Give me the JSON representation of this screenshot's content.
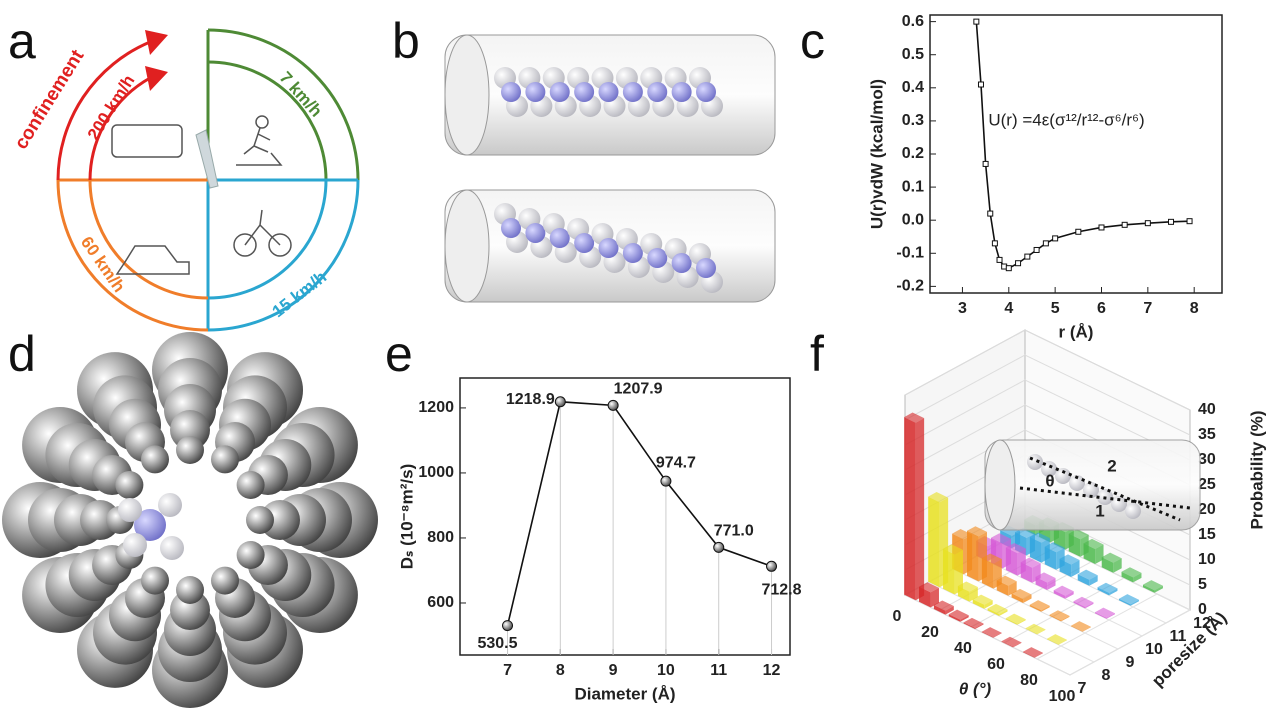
{
  "panel_labels": [
    "a",
    "b",
    "c",
    "d",
    "e",
    "f"
  ],
  "speed_dial": {
    "confinement": "confinement",
    "speeds": [
      "200 km/h",
      "7 km/h",
      "60 km/h",
      "15 km/h"
    ]
  },
  "chart_data": [
    {
      "type": "line",
      "annotation": "U(r) =4ε(σ¹²/r¹²-σ⁶/r⁶)",
      "xlabel": "r (Å)",
      "ylabel": "U(r)vdW (kcal/mol)",
      "color": "#111111",
      "x": [
        3.3,
        3.4,
        3.5,
        3.6,
        3.7,
        3.8,
        3.9,
        4.0,
        4.2,
        4.4,
        4.6,
        4.8,
        5.0,
        5.5,
        6.0,
        6.5,
        7.0,
        7.5,
        7.9
      ],
      "values": [
        0.6,
        0.41,
        0.17,
        0.02,
        -0.07,
        -0.12,
        -0.14,
        -0.145,
        -0.13,
        -0.11,
        -0.09,
        -0.07,
        -0.055,
        -0.035,
        -0.022,
        -0.014,
        -0.009,
        -0.005,
        -0.003
      ],
      "xlim": [
        2.3,
        8.6
      ],
      "xticks": [
        3,
        4,
        5,
        6,
        7,
        8
      ],
      "ylim": [
        -0.22,
        0.62
      ],
      "yticks": [
        -0.2,
        -0.1,
        {
          "value": 0,
          "label": "0.0"
        },
        0.1,
        0.2,
        0.3,
        0.4,
        0.5,
        0.6
      ]
    },
    {
      "type": "line",
      "xlabel": "Diameter (Å)",
      "ylabel": "Dₛ (10⁻⁸m²/s)",
      "color": "#111111",
      "x": [
        7,
        8,
        9,
        10,
        11,
        12
      ],
      "values": [
        530.5,
        1218.9,
        1207.9,
        974.7,
        771.0,
        712.8
      ],
      "value_labels": [
        "530.5",
        "1218.9",
        "1207.9",
        "974.7",
        "771.0",
        "712.8"
      ],
      "xlim": [
        6.1,
        12.35
      ],
      "xticks": [
        7,
        8,
        9,
        10,
        11,
        12
      ],
      "ylim": [
        440,
        1292
      ],
      "yticks": [
        600,
        800,
        1000,
        1200
      ]
    },
    {
      "type": "bar3d",
      "xlabel": "θ (°)",
      "ylabel": "poresize (Å)",
      "zlabel": "Probability (%)",
      "annotations": [
        "2",
        "θ",
        "1"
      ],
      "x": [
        3,
        12,
        21,
        30,
        39,
        50,
        62,
        75
      ],
      "xlim": [
        0,
        100
      ],
      "xticks": [
        0,
        20,
        40,
        60,
        80,
        100
      ],
      "ylim": [
        7,
        12
      ],
      "yticks": [
        7,
        8,
        9,
        10,
        11,
        12
      ],
      "zlim": [
        0,
        40
      ],
      "zticks": [
        0,
        5,
        10,
        15,
        20,
        25,
        30,
        35,
        40
      ],
      "series": [
        {
          "color": "#d62728",
          "values": [
            35.5,
            3,
            0.8,
            0.4,
            0.2,
            0.1,
            0.1,
            0.1
          ]
        },
        {
          "color": "#e8e020",
          "values": [
            17,
            8,
            2,
            0.8,
            0.4,
            0.2,
            0.1,
            0.1
          ]
        },
        {
          "color": "#f28a1c",
          "values": [
            7,
            9,
            5,
            2,
            0.8,
            0.3,
            0.2,
            0.1
          ]
        },
        {
          "color": "#d65ad6",
          "values": [
            3,
            5,
            4.5,
            3,
            1.5,
            0.6,
            0.3,
            0.2
          ]
        },
        {
          "color": "#2fa4de",
          "values": [
            2.5,
            3.5,
            4,
            3.5,
            2.5,
            1.2,
            0.5,
            0.3
          ]
        },
        {
          "color": "#4bb84b",
          "values": [
            2,
            3,
            3.5,
            3.5,
            3,
            2,
            1,
            0.5
          ]
        }
      ]
    }
  ]
}
